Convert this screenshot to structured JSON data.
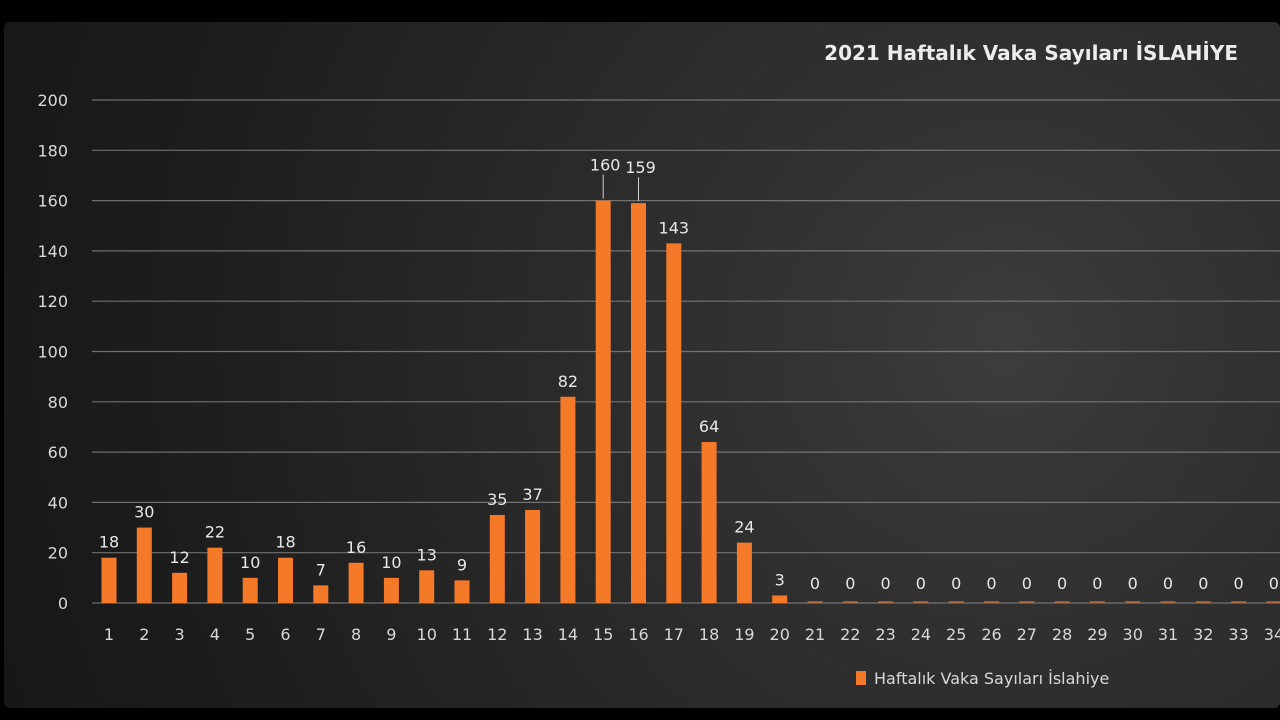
{
  "colors": {
    "bar": "#f47a2a",
    "background": "#262626",
    "text": "#e0e0e0"
  },
  "chart_data": {
    "type": "bar",
    "title": "2021 Haftalık Vaka Sayıları İSLAHİYE",
    "legend": {
      "label": "Haftalık Vaka Sayıları İslahiye",
      "position": "bottom-right"
    },
    "ylim": [
      0,
      200
    ],
    "yticks": [
      0,
      20,
      40,
      60,
      80,
      100,
      120,
      140,
      160,
      180,
      200
    ],
    "grid": true,
    "categories": [
      "1",
      "2",
      "3",
      "4",
      "5",
      "6",
      "7",
      "8",
      "9",
      "10",
      "11",
      "12",
      "13",
      "14",
      "15",
      "16",
      "17",
      "18",
      "19",
      "20",
      "21",
      "22",
      "23",
      "24",
      "25",
      "26",
      "27",
      "28",
      "29",
      "30",
      "31",
      "32",
      "33",
      "34"
    ],
    "series": [
      {
        "name": "Haftalık Vaka Sayıları İslahiye",
        "values": [
          18,
          30,
          12,
          22,
          10,
          18,
          7,
          16,
          10,
          13,
          9,
          35,
          37,
          82,
          160,
          159,
          143,
          64,
          24,
          3,
          0,
          0,
          0,
          0,
          0,
          0,
          0,
          0,
          0,
          0,
          0,
          0,
          0,
          0
        ]
      }
    ]
  }
}
